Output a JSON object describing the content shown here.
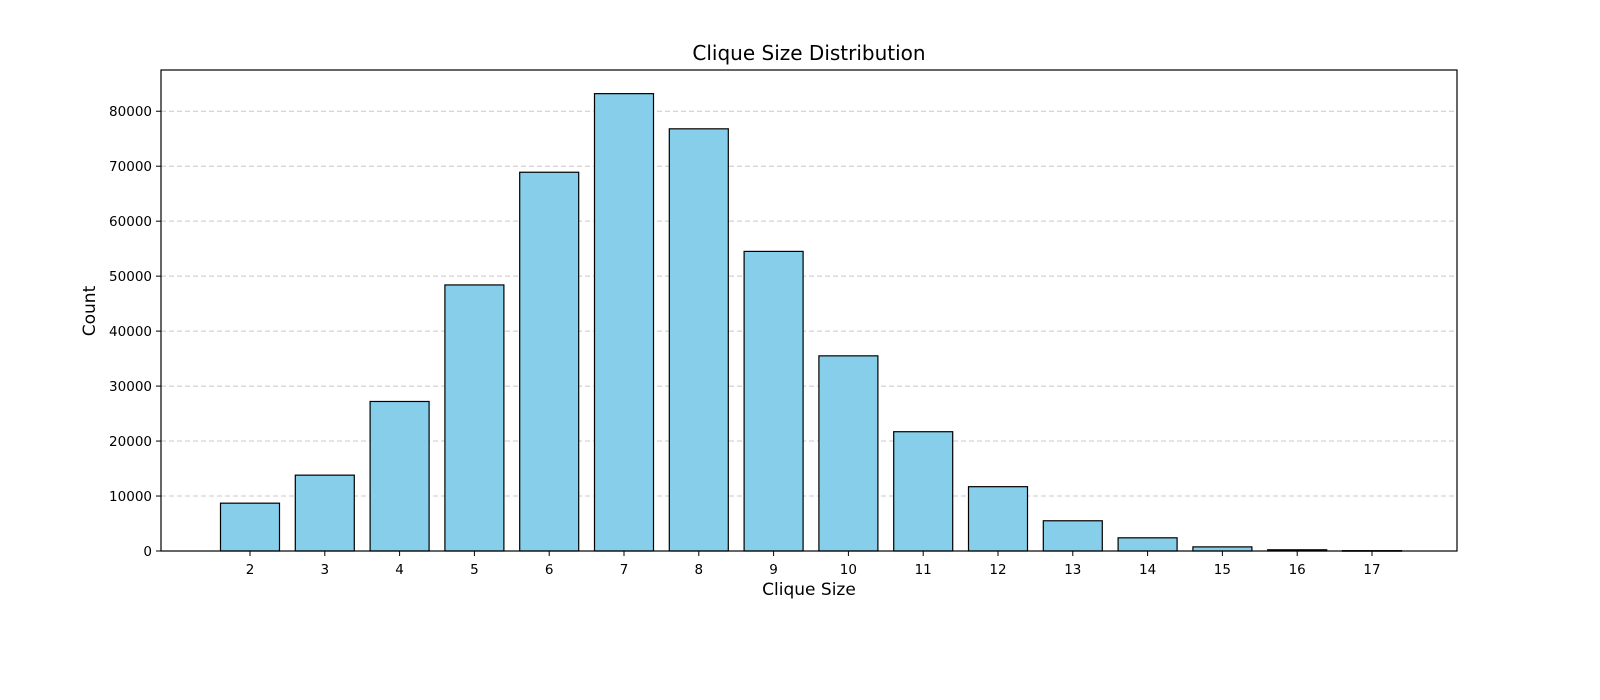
{
  "chart_data": {
    "type": "bar",
    "title": "Clique Size Distribution",
    "xlabel": "Clique Size",
    "ylabel": "Count",
    "categories": [
      "2",
      "3",
      "4",
      "5",
      "6",
      "7",
      "8",
      "9",
      "10",
      "11",
      "12",
      "13",
      "14",
      "15",
      "16",
      "17"
    ],
    "values": [
      8700,
      13800,
      27200,
      48400,
      68900,
      83200,
      76800,
      54500,
      35500,
      21700,
      11700,
      5500,
      2400,
      750,
      220,
      60
    ],
    "ylim": [
      0,
      87500
    ],
    "yticks": [
      0,
      10000,
      20000,
      30000,
      40000,
      50000,
      60000,
      70000,
      80000
    ],
    "ytick_labels": [
      "0",
      "10000",
      "20000",
      "30000",
      "40000",
      "50000",
      "60000",
      "70000",
      "80000"
    ],
    "grid": "y-dashed",
    "colors": {
      "bar_fill": "#87ceeb",
      "bar_edge": "#000000",
      "grid": "#c8c8c8"
    }
  }
}
